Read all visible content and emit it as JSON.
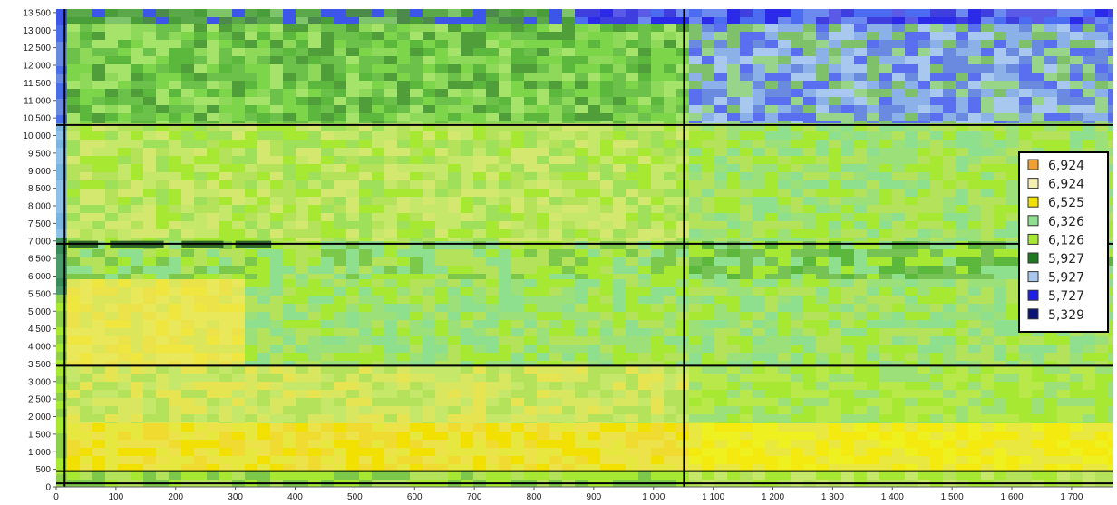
{
  "chart_data": {
    "type": "heatmap",
    "title": "",
    "xlabel": "",
    "ylabel": "",
    "xlim": [
      0,
      1770
    ],
    "ylim": [
      0,
      13600
    ],
    "x_ticks": [
      {
        "value": 0,
        "label": "0"
      },
      {
        "value": 100,
        "label": "100"
      },
      {
        "value": 200,
        "label": "200"
      },
      {
        "value": 300,
        "label": "300"
      },
      {
        "value": 400,
        "label": "400"
      },
      {
        "value": 500,
        "label": "500"
      },
      {
        "value": 600,
        "label": "600"
      },
      {
        "value": 700,
        "label": "700"
      },
      {
        "value": 800,
        "label": "800"
      },
      {
        "value": 900,
        "label": "900"
      },
      {
        "value": 1000,
        "label": "1 000"
      },
      {
        "value": 1100,
        "label": "1 100"
      },
      {
        "value": 1200,
        "label": "1 200"
      },
      {
        "value": 1300,
        "label": "1 300"
      },
      {
        "value": 1400,
        "label": "1 400"
      },
      {
        "value": 1500,
        "label": "1 500"
      },
      {
        "value": 1600,
        "label": "1 600"
      },
      {
        "value": 1700,
        "label": "1 700"
      }
    ],
    "y_ticks": [
      {
        "value": 0,
        "label": "0"
      },
      {
        "value": 500,
        "label": "500"
      },
      {
        "value": 1000,
        "label": "1 000"
      },
      {
        "value": 1500,
        "label": "1 500"
      },
      {
        "value": 2000,
        "label": "2 000"
      },
      {
        "value": 2500,
        "label": "2 500"
      },
      {
        "value": 3000,
        "label": "3 000"
      },
      {
        "value": 3500,
        "label": "3 500"
      },
      {
        "value": 4000,
        "label": "4 000"
      },
      {
        "value": 4500,
        "label": "4 500"
      },
      {
        "value": 5000,
        "label": "5 000"
      },
      {
        "value": 5500,
        "label": "5 500"
      },
      {
        "value": 6000,
        "label": "6 000"
      },
      {
        "value": 6500,
        "label": "6 500"
      },
      {
        "value": 7000,
        "label": "7 000"
      },
      {
        "value": 7500,
        "label": "7 500"
      },
      {
        "value": 8000,
        "label": "8 000"
      },
      {
        "value": 8500,
        "label": "8 500"
      },
      {
        "value": 9000,
        "label": "9 000"
      },
      {
        "value": 9500,
        "label": "9 500"
      },
      {
        "value": 10000,
        "label": "10 000"
      },
      {
        "value": 10500,
        "label": "10 500"
      },
      {
        "value": 11000,
        "label": "11 000"
      },
      {
        "value": 11500,
        "label": "11 500"
      },
      {
        "value": 12000,
        "label": "12 000"
      },
      {
        "value": 12500,
        "label": "12 500"
      },
      {
        "value": 13000,
        "label": "13 000"
      },
      {
        "value": 13500,
        "label": "13 500"
      }
    ],
    "legend": {
      "placement": "right",
      "entries": [
        {
          "label": "6,924",
          "color": "#f0a030"
        },
        {
          "label": "6,924",
          "color": "#f4efb0"
        },
        {
          "label": "6,525",
          "color": "#f2e100"
        },
        {
          "label": "6,326",
          "color": "#8ee08e"
        },
        {
          "label": "6,126",
          "color": "#a6e832"
        },
        {
          "label": "5,927",
          "color": "#1e7a1e"
        },
        {
          "label": "5,927",
          "color": "#a8c8f0"
        },
        {
          "label": "5,727",
          "color": "#1e1ee6"
        },
        {
          "label": "5,329",
          "color": "#0a1478"
        }
      ]
    },
    "grid_lines": {
      "vertical_x": [
        8,
        1045
      ],
      "horizontal_y": [
        10300,
        6920,
        3450,
        450,
        100
      ]
    },
    "bands": [
      {
        "y_from": 13200,
        "y_to": 13600,
        "x_split": 850,
        "left": [
          "#3d55e8",
          "#4a9e3a",
          "#5aa84a",
          "#7dc46a",
          "#4c8a4c"
        ],
        "right": [
          "#2a2ae8",
          "#3f3fe0",
          "#4b6cf0",
          "#6d8af0",
          "#5a5ae6"
        ]
      },
      {
        "y_from": 10350,
        "y_to": 13200,
        "x_split": 1045,
        "left": [
          "#7dd64a",
          "#5cb83c",
          "#8fd95a",
          "#4f9e3a",
          "#6cc14a",
          "#a5e36a"
        ],
        "right": [
          "#8cb0e8",
          "#5a6ef0",
          "#7fc06a",
          "#a8c8f0",
          "#6a8ae0",
          "#98d48a"
        ]
      },
      {
        "y_from": 7000,
        "y_to": 10350,
        "x_split": 1045,
        "left": [
          "#a6e832",
          "#b4e25a",
          "#c6e86a",
          "#9ee05a",
          "#d4e870"
        ],
        "right": [
          "#a6e832",
          "#9ce07a",
          "#b4e25a",
          "#8ee08e"
        ]
      },
      {
        "y_from": 5900,
        "y_to": 7000,
        "x_split": 1045,
        "left": [
          "#a6e832",
          "#8ee08e",
          "#b4e25a",
          "#7cc84a"
        ],
        "right": [
          "#5cb83c",
          "#8ee08e",
          "#a6e832",
          "#76c254"
        ]
      },
      {
        "y_from": 3450,
        "y_to": 5900,
        "x_split": 300,
        "left": [
          "#e8e85a",
          "#f0e640",
          "#dce65a",
          "#ece24a"
        ],
        "right": [
          "#a6e832",
          "#b4e25a",
          "#9ce07a",
          "#8ee08e"
        ]
      },
      {
        "y_from": 1800,
        "y_to": 3450,
        "x_split": 1045,
        "left": [
          "#c6e86a",
          "#d8e660",
          "#b4e25a",
          "#e6e450"
        ],
        "right": [
          "#a6e832",
          "#b8e84a",
          "#9ce07a"
        ]
      },
      {
        "y_from": 450,
        "y_to": 1800,
        "x_split": 1045,
        "left": [
          "#f2e100",
          "#ece24a",
          "#f0dc30",
          "#e6e840"
        ],
        "right": [
          "#f4ea10",
          "#eef020",
          "#e8e840"
        ]
      },
      {
        "y_from": 0,
        "y_to": 450,
        "x_split": 1045,
        "left": [
          "#a6e832",
          "#7cc84a",
          "#b4e25a"
        ],
        "right": [
          "#a6e832",
          "#b4e25a",
          "#c6e86a"
        ]
      }
    ],
    "dark_bars_y": 6900,
    "blue_column_color": "#3d55e8"
  }
}
